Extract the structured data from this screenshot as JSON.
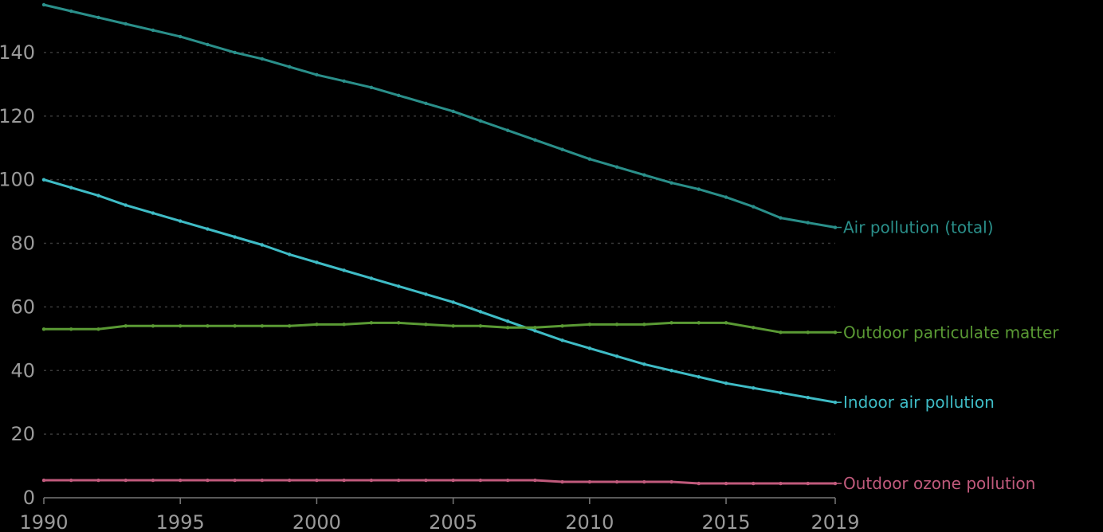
{
  "chart_data": {
    "type": "line",
    "title": "",
    "xlabel": "",
    "ylabel": "",
    "x": [
      1990,
      1991,
      1992,
      1993,
      1994,
      1995,
      1996,
      1997,
      1998,
      1999,
      2000,
      2001,
      2002,
      2003,
      2004,
      2005,
      2006,
      2007,
      2008,
      2009,
      2010,
      2011,
      2012,
      2013,
      2014,
      2015,
      2016,
      2017,
      2018,
      2019
    ],
    "xlim": [
      1990,
      2019
    ],
    "ylim": [
      0,
      155
    ],
    "x_ticks": [
      1990,
      1995,
      2000,
      2005,
      2010,
      2015,
      2019
    ],
    "y_ticks": [
      0,
      20,
      40,
      60,
      80,
      100,
      120,
      140
    ],
    "grid": true,
    "legend": "inline labels at line ends (right)",
    "series": [
      {
        "name": "Air pollution (total)",
        "color": "#2a8f8a",
        "values": [
          155,
          153,
          151,
          149,
          147,
          145,
          142.5,
          140,
          138,
          135.5,
          133,
          131,
          129,
          126.5,
          124,
          121.5,
          118.5,
          115.5,
          112.5,
          109.5,
          106.5,
          104,
          101.5,
          99,
          97,
          94.5,
          91.5,
          88,
          86.5,
          85
        ]
      },
      {
        "name": "Indoor air pollution",
        "color": "#3fbcc6",
        "values": [
          100,
          97.5,
          95,
          92,
          89.5,
          87,
          84.5,
          82,
          79.5,
          76.5,
          74,
          71.5,
          69,
          66.5,
          64,
          61.5,
          58.5,
          55.5,
          52.5,
          49.5,
          47,
          44.5,
          42,
          40,
          38,
          36,
          34.5,
          33,
          31.5,
          30
        ]
      },
      {
        "name": "Outdoor particulate matter",
        "color": "#5a9a34",
        "values": [
          53,
          53,
          53,
          54,
          54,
          54,
          54,
          54,
          54,
          54,
          54.5,
          54.5,
          55,
          55,
          54.5,
          54,
          54,
          53.5,
          53.5,
          54,
          54.5,
          54.5,
          54.5,
          55,
          55,
          55,
          53.5,
          52,
          52,
          52
        ]
      },
      {
        "name": "Outdoor ozone pollution",
        "color": "#c05a7c",
        "values": [
          5.5,
          5.5,
          5.5,
          5.5,
          5.5,
          5.5,
          5.5,
          5.5,
          5.5,
          5.5,
          5.5,
          5.5,
          5.5,
          5.5,
          5.5,
          5.5,
          5.5,
          5.5,
          5.5,
          5,
          5,
          5,
          5,
          5,
          4.5,
          4.5,
          4.5,
          4.5,
          4.5,
          4.5
        ]
      }
    ]
  }
}
